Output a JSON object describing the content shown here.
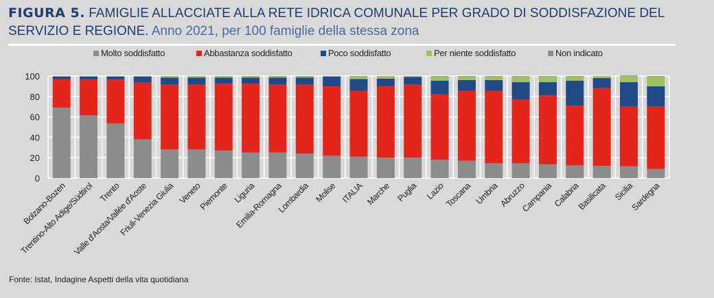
{
  "header": {
    "figure_label": "FIGURA 5.",
    "title_line1": "FAMIGLIE ALLACCIATE ALLA RETE IDRICA COMUNALE PER GRADO DI SODDISFAZIONE DEL",
    "title_line2_bold": "SERVIZIO E REGIONE.",
    "subtitle": "Anno 2021, per 100 famiglie della stessa zona"
  },
  "source": "Fonte: Istat, Indagine Aspetti della vita quotidiana",
  "colors": {
    "molto": "#8c8c8c",
    "abbastanza": "#e3251c",
    "poco": "#1f4a86",
    "per_niente": "#9dc15e",
    "non_indicato": "#8c8c8c",
    "title": "#1f3c6e",
    "background": "#d9d9d9",
    "grid": "#ffffff"
  },
  "chart_data": {
    "type": "bar",
    "stacked": true,
    "title": "FIGURA 5. FAMIGLIE ALLACCIATE ALLA RETE IDRICA COMUNALE PER GRADO DI SODDISFAZIONE DEL SERVIZIO E REGIONE. Anno 2021, per 100 famiglie della stessa zona",
    "xlabel": "",
    "ylabel": "",
    "ylim": [
      0,
      100
    ],
    "yticks": [
      0,
      20,
      40,
      60,
      80,
      100
    ],
    "grid": true,
    "legend_position": "top",
    "categories": [
      "Bolzano-Bozen",
      "Trentino-Alto Adige/Südtirol",
      "Trento",
      "Valle d'Aosta/Vallée d'Aoste",
      "Friuli-Venezia Giulia",
      "Veneto",
      "Piemonte",
      "Liguria",
      "Emilia-Romagna",
      "Lombardia",
      "Molise",
      "ITALIA",
      "Marche",
      "Puglia",
      "Lazio",
      "Toscana",
      "Umbria",
      "Abruzzo",
      "Campania",
      "Calabria",
      "Basilicata",
      "Sicilia",
      "Sardegna"
    ],
    "series": [
      {
        "name": "Molto soddisfatto",
        "key": "molto",
        "values": [
          69,
          61.5,
          53.5,
          38,
          28,
          28,
          27,
          25,
          25,
          24,
          22,
          21,
          20,
          20,
          18,
          17,
          14.5,
          14.5,
          13.5,
          12.5,
          12,
          11.5,
          9
        ]
      },
      {
        "name": "Abbastanza soddisfatto",
        "key": "abbastanza",
        "values": [
          28,
          35,
          43,
          55.5,
          63.5,
          63.5,
          65.5,
          67.5,
          66.5,
          67.5,
          68,
          64.5,
          70,
          71.5,
          64,
          68.5,
          71,
          62.5,
          67.5,
          58.5,
          76,
          58.5,
          61
        ]
      },
      {
        "name": "Poco soddisfatto",
        "key": "poco",
        "values": [
          2.5,
          3,
          3,
          6,
          7,
          7,
          6,
          6,
          7,
          7,
          9.5,
          11.5,
          7.5,
          7.5,
          13.5,
          10.5,
          10.5,
          17,
          13,
          24.5,
          10,
          24,
          20
        ]
      },
      {
        "name": "Per niente soddisfatto",
        "key": "per_niente",
        "values": [
          0.3,
          0.3,
          0.3,
          0.3,
          1.3,
          1.3,
          1.3,
          1.2,
          1.2,
          1,
          0.3,
          2.5,
          2.3,
          0.7,
          4,
          3.5,
          3.5,
          5.5,
          5.5,
          4,
          1.8,
          6,
          9.5
        ]
      },
      {
        "name": "Non indicato",
        "key": "non_indicato",
        "values": [
          0.2,
          0.2,
          0.2,
          0.2,
          0.2,
          0.2,
          0.2,
          0.3,
          0.3,
          0.5,
          0.2,
          0.5,
          0.2,
          0.3,
          0.5,
          0.5,
          0.5,
          0.5,
          0.5,
          0.5,
          0.2,
          0.5,
          0.5
        ]
      }
    ]
  },
  "legend": [
    {
      "label": "Molto soddisfatto",
      "key": "molto"
    },
    {
      "label": "Abbastanza soddisfatto",
      "key": "abbastanza"
    },
    {
      "label": "Poco soddisfatto",
      "key": "poco"
    },
    {
      "label": "Per niente soddisfatto",
      "key": "per_niente"
    },
    {
      "label": "Non indicato",
      "key": "non_indicato"
    }
  ]
}
